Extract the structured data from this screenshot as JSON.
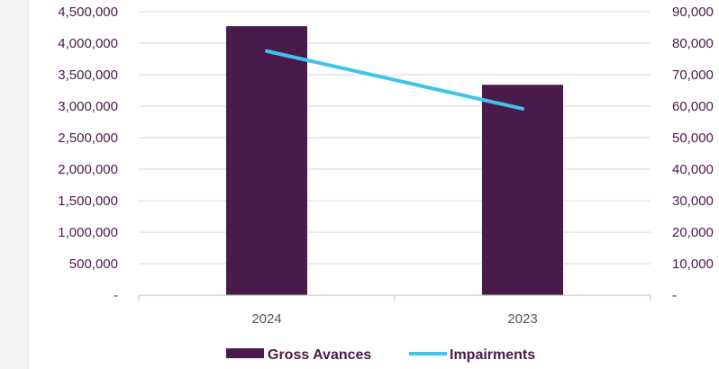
{
  "chart_data": {
    "type": "bar",
    "categories": [
      "2024",
      "2023"
    ],
    "series": [
      {
        "name": "Gross Avances",
        "type": "bar",
        "axis": "left",
        "values": [
          4270000,
          3340000
        ],
        "color": "#4a1a4a"
      },
      {
        "name": "Impairments",
        "type": "line",
        "axis": "right",
        "values": [
          77500,
          59200
        ],
        "color": "#3fc4ec"
      }
    ],
    "y_left": {
      "ylim": [
        0,
        4500000
      ],
      "ticks": [
        {
          "value": 4500000,
          "label": "4,500,000"
        },
        {
          "value": 4000000,
          "label": "4,000,000"
        },
        {
          "value": 3500000,
          "label": "3,500,000"
        },
        {
          "value": 3000000,
          "label": "3,000,000"
        },
        {
          "value": 2500000,
          "label": "2,500,000"
        },
        {
          "value": 2000000,
          "label": "2,000,000"
        },
        {
          "value": 1500000,
          "label": "1,500,000"
        },
        {
          "value": 1000000,
          "label": "1,000,000"
        },
        {
          "value": 500000,
          "label": "500,000"
        },
        {
          "value": 0,
          "label": "-"
        }
      ]
    },
    "y_right": {
      "ylim": [
        0,
        90000
      ],
      "ticks": [
        {
          "value": 90000,
          "label": "90,000"
        },
        {
          "value": 80000,
          "label": "80,000"
        },
        {
          "value": 70000,
          "label": "70,000"
        },
        {
          "value": 60000,
          "label": "60,000"
        },
        {
          "value": 50000,
          "label": "50,000"
        },
        {
          "value": 40000,
          "label": "40,000"
        },
        {
          "value": 30000,
          "label": "30,000"
        },
        {
          "value": 20000,
          "label": "20,000"
        },
        {
          "value": 10000,
          "label": "10,000"
        },
        {
          "value": 0,
          "label": "-"
        }
      ]
    },
    "grid": true,
    "legend": "bottom-center"
  }
}
